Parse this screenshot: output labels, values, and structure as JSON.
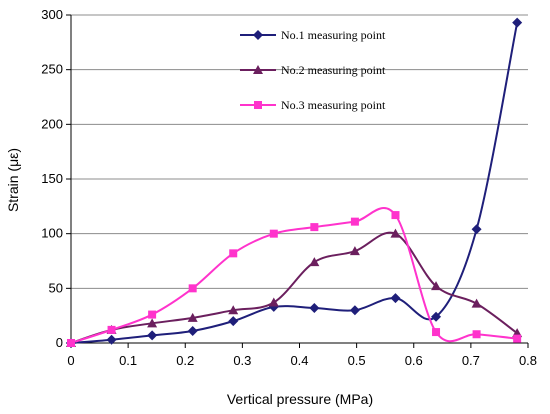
{
  "chart_data": {
    "type": "line",
    "xlabel": "Vertical pressure (MPa)",
    "ylabel": "Strain (με)",
    "xlim": [
      0,
      0.8
    ],
    "ylim": [
      0,
      300
    ],
    "x_ticks": [
      "0",
      "0.1",
      "0.2",
      "0.3",
      "0.4",
      "0.5",
      "0.6",
      "0.7",
      "0.8"
    ],
    "y_ticks": [
      "0",
      "50",
      "100",
      "150",
      "200",
      "250",
      "300"
    ],
    "grid": "horizontal",
    "legend_position": "top-center",
    "series": [
      {
        "name": "No.1 measuring point",
        "color": "#1f1f7a",
        "marker": "diamond",
        "x": [
          0,
          0.071,
          0.142,
          0.213,
          0.284,
          0.355,
          0.426,
          0.497,
          0.568,
          0.639,
          0.71,
          0.781
        ],
        "y": [
          0,
          3,
          7,
          11,
          20,
          33,
          32,
          30,
          41,
          24,
          104,
          293
        ]
      },
      {
        "name": "No.2 measuring point",
        "color": "#6b1f5e",
        "marker": "triangle",
        "x": [
          0,
          0.071,
          0.142,
          0.213,
          0.284,
          0.355,
          0.426,
          0.497,
          0.568,
          0.639,
          0.71,
          0.781
        ],
        "y": [
          0,
          12,
          18,
          23,
          30,
          37,
          74,
          84,
          100,
          52,
          36,
          9
        ]
      },
      {
        "name": "No.3 measuring point",
        "color": "#ff33cc",
        "marker": "square",
        "x": [
          0,
          0.071,
          0.142,
          0.213,
          0.284,
          0.355,
          0.426,
          0.497,
          0.568,
          0.639,
          0.71,
          0.781
        ],
        "y": [
          0,
          12,
          26,
          50,
          82,
          100,
          106,
          111,
          117,
          10,
          8,
          4
        ]
      }
    ]
  }
}
